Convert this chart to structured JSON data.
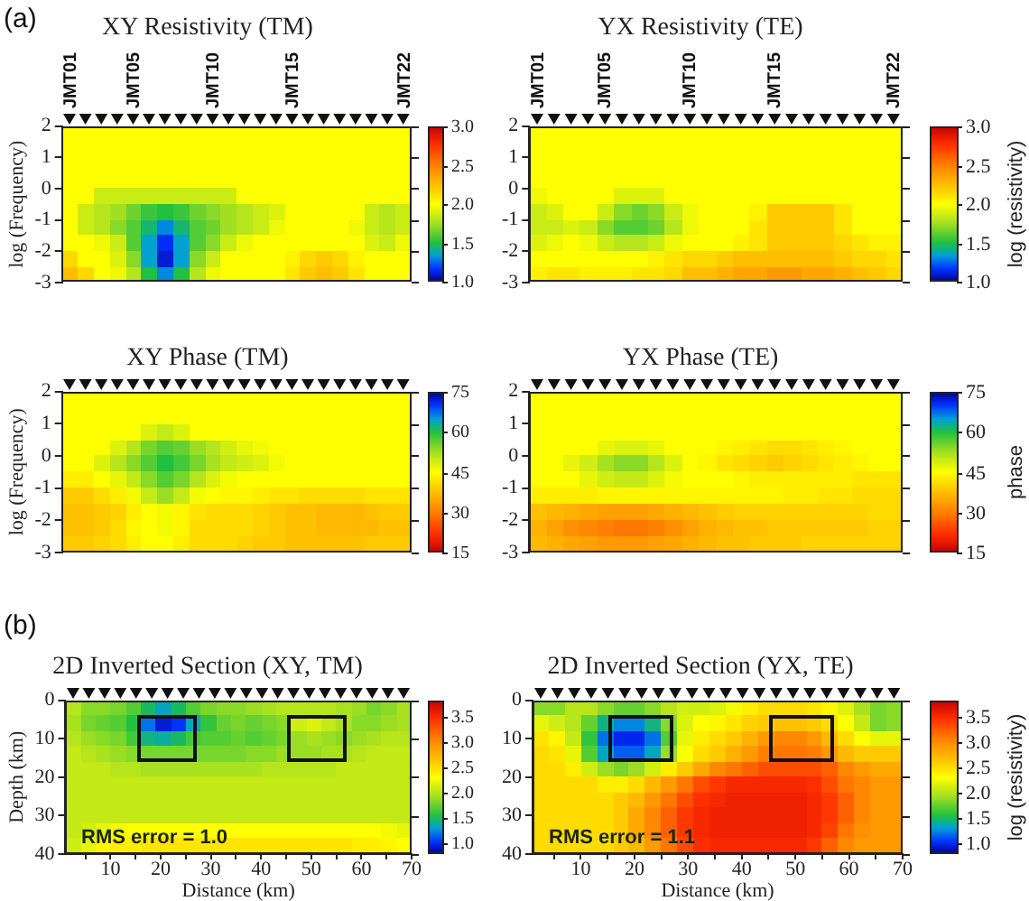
{
  "chart_data": [
    {
      "type": "heatmap",
      "title": "XY Resistivity (TM)",
      "ylabel": "log (Frequency)",
      "annotations": [
        "(a)"
      ],
      "categories": [
        "JMT01",
        null,
        null,
        null,
        "JMT05",
        null,
        null,
        null,
        null,
        "JMT10",
        null,
        null,
        null,
        null,
        "JMT15",
        null,
        null,
        null,
        null,
        null,
        null,
        "JMT22"
      ],
      "ylim": [
        -3,
        2
      ],
      "yticks": [
        -3,
        -2,
        -1,
        0,
        1,
        2
      ],
      "clim": [
        1,
        3
      ],
      "cticks": [
        {
          "value": 1,
          "label": "1.0"
        },
        1.5,
        {
          "value": 2,
          "label": "2.0"
        },
        2.5,
        {
          "value": 3,
          "label": "3.0"
        }
      ],
      "cells": [
        [
          2,
          2,
          2,
          2,
          2,
          2,
          2,
          2,
          2,
          2,
          2,
          2,
          2,
          2,
          2,
          2,
          2,
          2,
          2,
          2,
          2,
          2
        ],
        [
          2,
          2,
          2,
          2,
          2,
          2,
          2,
          2,
          2,
          2,
          2,
          2,
          2,
          2,
          2,
          2,
          2,
          2,
          2,
          2,
          2,
          2
        ],
        [
          2,
          2,
          2,
          2,
          2,
          2,
          2,
          2,
          2,
          2,
          2,
          2,
          2,
          2,
          2,
          2,
          2,
          2,
          2,
          2,
          2,
          2
        ],
        [
          2,
          2,
          2,
          2,
          2,
          2,
          2,
          2,
          2,
          2,
          2,
          2,
          2,
          2,
          2,
          2,
          2,
          2,
          2,
          2,
          2,
          2
        ],
        [
          2,
          2,
          1.85,
          1.85,
          1.85,
          1.85,
          1.85,
          1.85,
          1.85,
          1.85,
          1.85,
          2,
          2,
          2,
          2,
          2,
          2,
          2,
          2,
          2,
          2,
          2
        ],
        [
          2,
          1.85,
          1.8,
          1.75,
          1.65,
          1.55,
          1.5,
          1.55,
          1.65,
          1.7,
          1.75,
          1.8,
          1.85,
          1.9,
          2,
          2,
          2,
          2,
          2,
          1.85,
          1.8,
          1.85
        ],
        [
          2,
          1.85,
          1.8,
          1.7,
          1.6,
          1.45,
          1.3,
          1.45,
          1.6,
          1.65,
          1.75,
          1.8,
          1.85,
          1.95,
          2,
          2,
          2,
          2,
          1.95,
          1.85,
          1.8,
          1.85
        ],
        [
          2,
          2,
          1.95,
          1.85,
          1.6,
          1.35,
          1.15,
          1.35,
          1.6,
          1.7,
          1.85,
          1.95,
          2,
          2,
          2,
          2,
          2,
          2,
          2,
          1.9,
          1.85,
          1.95
        ],
        [
          2.15,
          2,
          2,
          1.9,
          1.7,
          1.35,
          1.1,
          1.35,
          1.7,
          1.85,
          2,
          2,
          2,
          2,
          2.05,
          2.15,
          2.2,
          2.15,
          2.05,
          2,
          2,
          2
        ],
        [
          2.25,
          2.15,
          2,
          1.95,
          1.8,
          1.5,
          1.3,
          1.5,
          1.8,
          1.95,
          2,
          2,
          2,
          2,
          2.1,
          2.2,
          2.25,
          2.2,
          2.1,
          2,
          2,
          2
        ]
      ]
    },
    {
      "type": "heatmap",
      "title": "YX Resistivity (TE)",
      "categories": [
        "JMT01",
        null,
        null,
        null,
        "JMT05",
        null,
        null,
        null,
        null,
        "JMT10",
        null,
        null,
        null,
        null,
        "JMT15",
        null,
        null,
        null,
        null,
        null,
        null,
        "JMT22"
      ],
      "ylim": [
        -3,
        2
      ],
      "yticks": [
        -3,
        -2,
        -1,
        0,
        1,
        2
      ],
      "clim": [
        1,
        3
      ],
      "clabel": "log (resistivity)",
      "cticks": [
        {
          "value": 1,
          "label": "1.0"
        },
        1.5,
        {
          "value": 2,
          "label": "2.0"
        },
        2.5,
        {
          "value": 3,
          "label": "3.0"
        }
      ],
      "cells": [
        [
          2,
          2,
          2,
          2,
          2,
          2,
          2,
          2,
          2,
          2,
          2,
          2,
          2,
          2,
          2,
          2,
          2,
          2,
          2,
          2,
          2,
          2
        ],
        [
          2,
          2,
          2,
          2,
          2,
          2,
          2,
          2,
          2,
          2,
          2,
          2,
          2,
          2,
          2,
          2,
          2,
          2,
          2,
          2,
          2,
          2
        ],
        [
          2,
          2,
          2,
          2,
          2,
          2,
          2,
          2,
          2,
          2,
          2,
          2,
          2,
          2,
          2,
          2,
          2,
          2,
          2,
          2,
          2,
          2
        ],
        [
          2,
          2,
          2,
          2,
          2,
          2,
          2,
          2,
          2,
          2,
          2,
          2,
          2,
          2,
          2,
          2,
          2,
          2,
          2,
          2,
          2,
          2
        ],
        [
          1.95,
          2,
          2,
          2,
          2,
          1.9,
          1.9,
          1.9,
          2,
          2,
          2,
          2,
          2,
          2,
          2,
          2,
          2,
          2,
          2,
          2,
          2,
          2
        ],
        [
          1.85,
          1.9,
          2,
          2,
          1.85,
          1.7,
          1.65,
          1.7,
          1.85,
          1.95,
          2,
          2,
          2,
          2.05,
          2.2,
          2.2,
          2.2,
          2.2,
          2.1,
          2,
          2,
          2
        ],
        [
          1.85,
          1.85,
          1.9,
          1.85,
          1.7,
          1.6,
          1.6,
          1.65,
          1.8,
          1.95,
          2,
          2,
          2,
          2.1,
          2.2,
          2.2,
          2.2,
          2.2,
          2.1,
          2,
          2,
          2
        ],
        [
          1.9,
          1.95,
          2,
          1.95,
          1.85,
          1.8,
          1.8,
          1.85,
          1.95,
          2,
          2,
          2,
          2.05,
          2.1,
          2.2,
          2.2,
          2.2,
          2.2,
          2.15,
          2.1,
          2.05,
          2.05
        ],
        [
          2,
          2,
          2,
          2,
          2,
          2,
          2,
          2.05,
          2.1,
          2.15,
          2.15,
          2.2,
          2.25,
          2.25,
          2.25,
          2.25,
          2.25,
          2.25,
          2.2,
          2.15,
          2.15,
          2.1
        ],
        [
          2.05,
          2.1,
          2.1,
          2.05,
          2.05,
          2.05,
          2.1,
          2.1,
          2.15,
          2.25,
          2.25,
          2.3,
          2.35,
          2.35,
          2.4,
          2.4,
          2.35,
          2.35,
          2.3,
          2.25,
          2.2,
          2.15
        ]
      ]
    },
    {
      "type": "heatmap",
      "title": "XY Phase (TM)",
      "ylabel": "log (Frequency)",
      "tick_labels": "y",
      "categories": [
        null,
        null,
        null,
        null,
        null,
        null,
        null,
        null,
        null,
        null,
        null,
        null,
        null,
        null,
        null,
        null,
        null,
        null,
        null,
        null,
        null,
        null
      ],
      "ylim": [
        -3,
        2
      ],
      "yticks": [
        -3,
        -2,
        -1,
        0,
        1,
        2
      ],
      "clim": [
        75,
        15
      ],
      "cticks": [
        15,
        30,
        45,
        60,
        75
      ],
      "cells": [
        [
          45,
          45,
          45,
          45,
          45,
          45,
          45,
          45,
          45,
          45,
          45,
          45,
          45,
          45,
          45,
          45,
          45,
          45,
          45,
          45,
          45,
          45
        ],
        [
          45,
          45,
          45,
          45,
          45,
          45,
          45,
          45,
          45,
          45,
          45,
          45,
          45,
          45,
          45,
          45,
          45,
          45,
          45,
          45,
          45,
          45
        ],
        [
          45,
          45,
          45,
          45,
          45,
          48,
          50,
          48,
          45,
          45,
          45,
          45,
          45,
          45,
          45,
          45,
          45,
          45,
          45,
          45,
          45,
          45
        ],
        [
          45,
          45,
          45,
          48,
          51,
          55,
          57,
          56,
          53,
          51,
          49,
          47,
          46,
          45,
          45,
          45,
          45,
          45,
          45,
          45,
          45,
          45
        ],
        [
          45,
          45,
          48,
          51,
          54,
          57,
          60,
          58,
          55,
          52,
          50,
          49,
          48,
          46,
          45,
          45,
          45,
          45,
          45,
          45,
          45,
          45
        ],
        [
          43,
          43,
          45,
          47,
          50,
          54,
          57,
          55,
          51,
          48,
          46,
          45,
          45,
          45,
          45,
          45,
          45,
          45,
          45,
          45,
          45,
          45
        ],
        [
          39,
          39,
          41,
          43,
          46,
          50,
          53,
          50,
          46,
          45,
          44,
          44,
          43,
          42,
          42,
          41,
          41,
          41,
          41,
          42,
          42,
          42
        ],
        [
          38,
          38,
          39,
          40,
          43,
          45,
          46,
          44,
          42,
          41,
          41,
          41,
          40,
          39,
          38,
          38,
          37,
          37,
          37,
          38,
          39,
          39
        ],
        [
          38,
          38,
          39,
          41,
          44,
          45,
          46,
          44,
          41,
          41,
          41,
          41,
          40,
          39,
          38,
          38,
          37,
          37,
          37,
          37,
          38,
          38
        ],
        [
          39,
          39,
          40,
          41,
          43,
          45,
          45,
          43,
          41,
          41,
          41,
          40,
          39,
          39,
          38,
          38,
          38,
          38,
          38,
          39,
          39,
          39
        ]
      ]
    },
    {
      "type": "heatmap",
      "title": "YX Phase (TE)",
      "tick_labels": "y",
      "categories": [
        null,
        null,
        null,
        null,
        null,
        null,
        null,
        null,
        null,
        null,
        null,
        null,
        null,
        null,
        null,
        null,
        null,
        null,
        null,
        null,
        null,
        null
      ],
      "ylim": [
        -3,
        2
      ],
      "yticks": [
        -3,
        -2,
        -1,
        0,
        1,
        2
      ],
      "clim": [
        75,
        15
      ],
      "clabel": "phase",
      "cticks": [
        15,
        30,
        45,
        60,
        75
      ],
      "cells": [
        [
          45,
          45,
          45,
          45,
          45,
          45,
          45,
          45,
          45,
          45,
          45,
          45,
          45,
          45,
          45,
          45,
          45,
          45,
          45,
          45,
          45,
          45
        ],
        [
          45,
          45,
          45,
          45,
          45,
          45,
          45,
          45,
          45,
          45,
          45,
          45,
          45,
          45,
          45,
          45,
          45,
          45,
          45,
          45,
          45,
          45
        ],
        [
          45,
          45,
          45,
          45,
          45,
          45,
          45,
          45,
          45,
          45,
          45,
          45,
          45,
          45,
          45,
          45,
          45,
          45,
          45,
          45,
          45,
          45
        ],
        [
          45,
          45,
          45,
          45,
          47,
          48,
          48,
          47,
          45,
          45,
          45,
          44,
          43,
          42,
          41,
          41,
          42,
          43,
          44,
          45,
          45,
          45
        ],
        [
          45,
          45,
          47,
          49,
          52,
          54,
          54,
          51,
          48,
          45,
          44,
          42,
          41,
          40,
          39,
          40,
          41,
          42,
          43,
          44,
          45,
          45
        ],
        [
          45,
          45,
          45,
          47,
          49,
          50,
          50,
          48,
          46,
          45,
          45,
          45,
          44,
          43,
          43,
          43,
          43,
          43,
          43,
          42,
          42,
          42
        ],
        [
          43,
          43,
          43,
          43,
          44,
          44,
          44,
          44,
          44,
          44,
          44,
          44,
          44,
          44,
          44,
          43,
          43,
          42,
          42,
          41,
          41,
          41
        ],
        [
          38,
          37,
          36,
          35,
          34,
          34,
          34,
          35,
          36,
          37,
          38,
          39,
          40,
          40,
          40,
          40,
          40,
          40,
          40,
          40,
          41,
          41
        ],
        [
          36,
          34,
          32,
          31,
          30,
          29,
          29,
          30,
          32,
          34,
          36,
          37,
          38,
          38,
          39,
          39,
          39,
          39,
          39,
          39,
          40,
          40
        ],
        [
          37,
          36,
          35,
          34,
          33,
          33,
          33,
          34,
          35,
          36,
          37,
          38,
          38,
          39,
          39,
          39,
          40,
          40,
          40,
          40,
          40,
          40
        ]
      ]
    },
    {
      "type": "heatmap",
      "title": "2D Inverted Section (XY, TM)",
      "xlabel": "Distance (km)",
      "ylabel": "Depth (km)",
      "annotations": [
        "(b)",
        "RMS error = 1.0"
      ],
      "xlim": [
        1,
        70
      ],
      "xticks": [
        {
          "value": 5,
          "label": null
        },
        10,
        {
          "value": 15,
          "label": null
        },
        20,
        {
          "value": 25,
          "label": null
        },
        30,
        {
          "value": 35,
          "label": null
        },
        40,
        {
          "value": 45,
          "label": null
        },
        50,
        {
          "value": 55,
          "label": null
        },
        60,
        {
          "value": 65,
          "label": null
        },
        70
      ],
      "ylim": [
        40,
        0
      ],
      "yticks": [
        0,
        10,
        20,
        30,
        40
      ],
      "clim": [
        0.8,
        3.8
      ],
      "cticks": [
        {
          "value": 1,
          "label": "1.0"
        },
        1.5,
        {
          "value": 2,
          "label": "2.0"
        },
        2.5,
        {
          "value": 3,
          "label": "3.0"
        },
        3.5
      ],
      "cells": [
        [
          2,
          1.85,
          1.85,
          1.8,
          1.7,
          1.5,
          1.35,
          1.5,
          1.7,
          1.8,
          1.85,
          1.85,
          1.9,
          1.95,
          2,
          2,
          2,
          2,
          1.95,
          1.9,
          1.8,
          1.85,
          1.95
        ],
        [
          1.95,
          1.8,
          1.75,
          1.7,
          1.55,
          1.2,
          0.95,
          1.05,
          1.35,
          1.6,
          1.75,
          1.8,
          1.75,
          1.8,
          1.85,
          2.1,
          2.15,
          2.05,
          1.95,
          1.85,
          1.85,
          1.9,
          1.95
        ],
        [
          2,
          1.9,
          1.85,
          1.8,
          1.65,
          1.45,
          1.4,
          1.5,
          1.65,
          1.7,
          1.7,
          1.75,
          1.7,
          1.75,
          1.8,
          1.9,
          1.95,
          1.9,
          1.85,
          1.9,
          1.95,
          2,
          2
        ],
        [
          2.05,
          2,
          1.95,
          1.9,
          1.85,
          1.8,
          1.8,
          1.8,
          1.8,
          1.8,
          1.8,
          1.8,
          1.85,
          1.85,
          1.9,
          1.9,
          1.9,
          1.95,
          1.95,
          2,
          2.05,
          2.05,
          2.05
        ],
        [
          2.05,
          2.05,
          2.05,
          2,
          2,
          1.95,
          1.95,
          1.95,
          1.95,
          1.95,
          1.95,
          1.95,
          1.95,
          2,
          2,
          2,
          2,
          2,
          2.05,
          2.05,
          2.05,
          2.05,
          2.05
        ],
        [
          2.05,
          2.05,
          2.05,
          2.05,
          2.05,
          2.05,
          2.05,
          2.05,
          2.05,
          2.05,
          2.05,
          2.05,
          2.05,
          2.05,
          2.05,
          2.05,
          2.05,
          2.05,
          2.05,
          2.05,
          2.05,
          2.05,
          2.05
        ],
        [
          2.05,
          2.05,
          2.05,
          2.05,
          2.05,
          2.05,
          2.05,
          2.05,
          2.05,
          2.05,
          2.05,
          2.05,
          2.05,
          2.05,
          2.05,
          2.05,
          2.05,
          2.05,
          2.05,
          2.05,
          2.05,
          2.05,
          2.05
        ],
        [
          2.05,
          2.05,
          2.05,
          2.05,
          2.05,
          2.05,
          2.05,
          2.05,
          2.05,
          2.05,
          2.05,
          2.05,
          2.05,
          2.05,
          2.05,
          2.05,
          2.05,
          2.05,
          2.05,
          2.05,
          2.05,
          2.05,
          2.05
        ],
        [
          2.05,
          2.1,
          2.2,
          2.25,
          2.3,
          2.3,
          2.3,
          2.3,
          2.3,
          2.3,
          2.3,
          2.3,
          2.3,
          2.3,
          2.3,
          2.3,
          2.3,
          2.3,
          2.3,
          2.3,
          2.3,
          2.25,
          2.2
        ],
        [
          2.1,
          2.2,
          2.35,
          2.4,
          2.4,
          2.45,
          2.45,
          2.45,
          2.45,
          2.45,
          2.45,
          2.45,
          2.45,
          2.45,
          2.45,
          2.45,
          2.45,
          2.45,
          2.45,
          2.4,
          2.4,
          2.35,
          2.3
        ]
      ]
    },
    {
      "type": "heatmap",
      "title": "2D Inverted Section (YX, TE)",
      "xlabel": "Distance (km)",
      "annotations": [
        "RMS error = 1.1"
      ],
      "xlim": [
        1,
        70
      ],
      "xticks": [
        {
          "value": 5,
          "label": null
        },
        10,
        {
          "value": 15,
          "label": null
        },
        20,
        {
          "value": 25,
          "label": null
        },
        30,
        {
          "value": 35,
          "label": null
        },
        40,
        {
          "value": 45,
          "label": null
        },
        50,
        {
          "value": 55,
          "label": null
        },
        60,
        {
          "value": 65,
          "label": null
        },
        70
      ],
      "ylim": [
        40,
        0
      ],
      "yticks": [
        0,
        10,
        20,
        30,
        40
      ],
      "clim": [
        0.8,
        3.8
      ],
      "clabel": "log (resistivity)",
      "cticks": [
        {
          "value": 1,
          "label": "1.0"
        },
        1.5,
        {
          "value": 2,
          "label": "2.0"
        },
        2.5,
        {
          "value": 3,
          "label": "3.0"
        },
        3.5
      ],
      "cells": [
        [
          1.85,
          1.85,
          2,
          2,
          1.85,
          1.75,
          1.75,
          1.85,
          2,
          2.1,
          2.1,
          2.15,
          2.25,
          2.4,
          2.5,
          2.5,
          2.5,
          2.45,
          2.35,
          2.15,
          1.95,
          1.8,
          1.85
        ],
        [
          2.2,
          2.1,
          2,
          1.75,
          1.45,
          1.25,
          1.25,
          1.45,
          1.85,
          2.15,
          2.3,
          2.35,
          2.45,
          2.55,
          2.6,
          2.65,
          2.65,
          2.6,
          2.5,
          2.3,
          2.05,
          1.8,
          1.85
        ],
        [
          2.45,
          2.35,
          2.05,
          1.6,
          1.2,
          1,
          1,
          1.2,
          1.7,
          2.2,
          2.4,
          2.5,
          2.6,
          2.75,
          2.9,
          3,
          3,
          2.9,
          2.7,
          2.5,
          2.3,
          2.2,
          2.2
        ],
        [
          2.5,
          2.45,
          2.2,
          1.7,
          1.35,
          1.15,
          1.15,
          1.35,
          1.9,
          2.3,
          2.5,
          2.6,
          2.75,
          2.9,
          3.05,
          3.1,
          3.1,
          3.05,
          2.9,
          2.7,
          2.6,
          2.6,
          2.6
        ],
        [
          2.5,
          2.5,
          2.4,
          2.1,
          1.9,
          1.8,
          1.9,
          2.1,
          2.4,
          2.6,
          2.8,
          3,
          3.1,
          3.2,
          3.3,
          3.3,
          3.3,
          3.3,
          3.2,
          3,
          2.9,
          2.8,
          2.8
        ],
        [
          2.5,
          2.5,
          2.5,
          2.5,
          2.4,
          2.4,
          2.5,
          2.7,
          2.9,
          3.1,
          3.3,
          3.4,
          3.5,
          3.5,
          3.5,
          3.5,
          3.5,
          3.45,
          3.3,
          3.1,
          3,
          2.9,
          2.9
        ],
        [
          2.5,
          2.5,
          2.5,
          2.5,
          2.5,
          2.6,
          2.7,
          2.9,
          3.1,
          3.3,
          3.45,
          3.5,
          3.55,
          3.55,
          3.55,
          3.55,
          3.55,
          3.5,
          3.4,
          3.2,
          3,
          2.9,
          2.9
        ],
        [
          2.5,
          2.5,
          2.5,
          2.5,
          2.5,
          2.6,
          2.8,
          3,
          3.2,
          3.4,
          3.5,
          3.55,
          3.55,
          3.55,
          3.55,
          3.55,
          3.55,
          3.5,
          3.4,
          3.2,
          3,
          2.9,
          2.9
        ],
        [
          2.5,
          2.5,
          2.5,
          2.5,
          2.5,
          2.6,
          2.8,
          3,
          3.2,
          3.4,
          3.5,
          3.55,
          3.55,
          3.55,
          3.55,
          3.55,
          3.55,
          3.5,
          3.35,
          3.1,
          2.95,
          2.9,
          2.9
        ],
        [
          2.5,
          2.5,
          2.5,
          2.5,
          2.5,
          2.6,
          2.7,
          2.9,
          3.1,
          3.3,
          3.45,
          3.5,
          3.5,
          3.5,
          3.5,
          3.5,
          3.5,
          3.4,
          3.2,
          3,
          2.9,
          2.9,
          2.9
        ]
      ]
    }
  ]
}
